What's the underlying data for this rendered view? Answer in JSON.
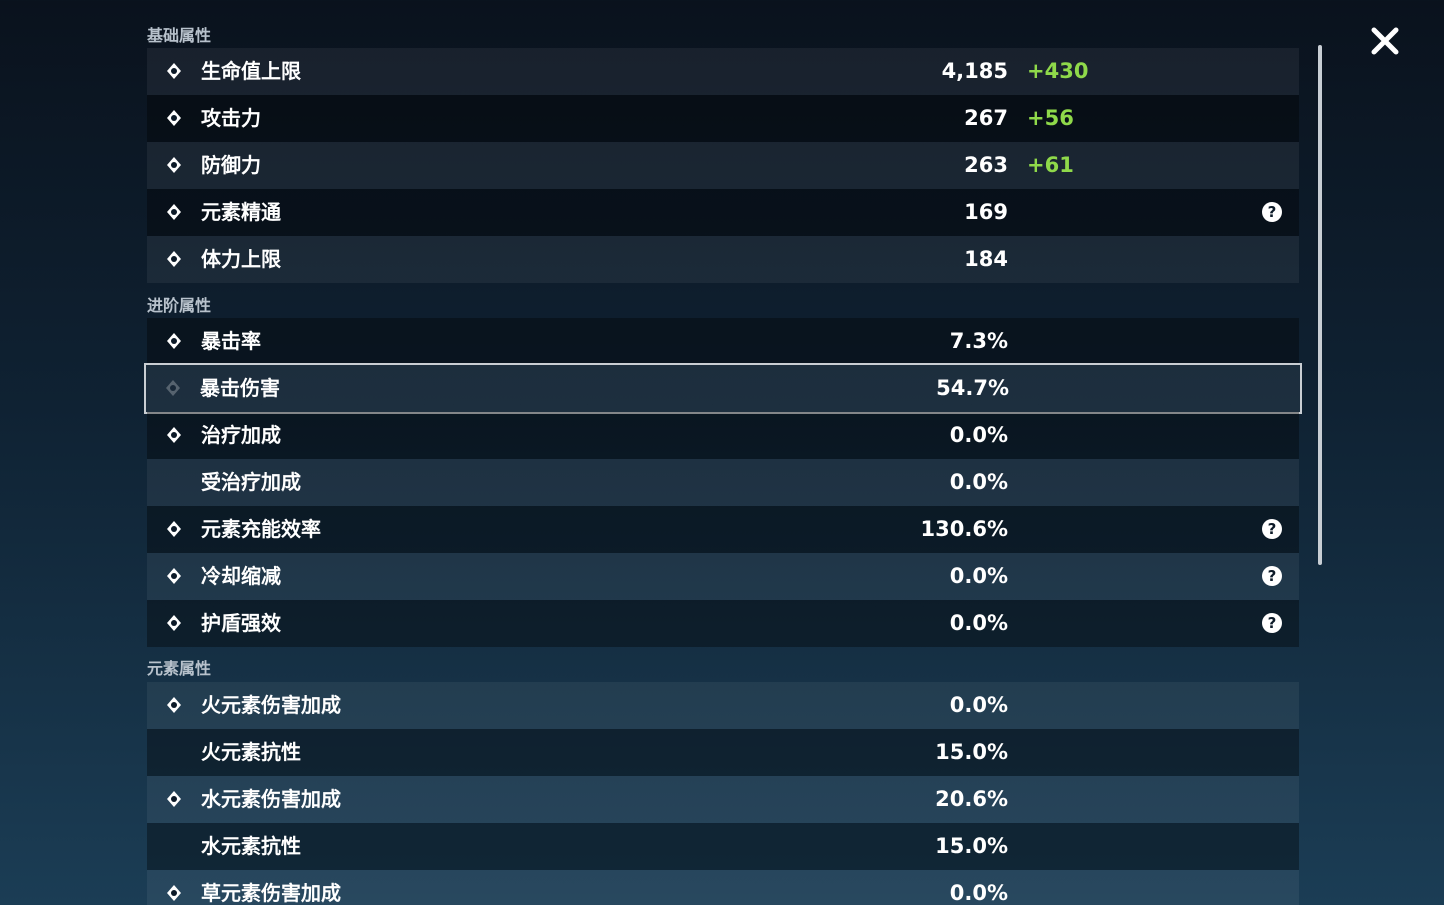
{
  "sections": [
    {
      "title": "基础属性",
      "rows": [
        {
          "label": "生命值上限",
          "value": "4,185",
          "bonus": "+430"
        },
        {
          "label": "攻击力",
          "value": "267",
          "bonus": "+56"
        },
        {
          "label": "防御力",
          "value": "263",
          "bonus": "+61"
        },
        {
          "label": "元素精通",
          "value": "169",
          "help": true
        },
        {
          "label": "体力上限",
          "value": "184"
        }
      ]
    },
    {
      "title": "进阶属性",
      "rows": [
        {
          "label": "暴击率",
          "value": "7.3%"
        },
        {
          "label": "暴击伤害",
          "value": "54.7%",
          "selected": true
        },
        {
          "label": "治疗加成",
          "value": "0.0%"
        },
        {
          "label": "受治疗加成",
          "value": "0.0%"
        },
        {
          "label": "元素充能效率",
          "value": "130.6%",
          "help": true
        },
        {
          "label": "冷却缩减",
          "value": "0.0%",
          "help": true
        },
        {
          "label": "护盾强效",
          "value": "0.0%",
          "help": true
        }
      ]
    },
    {
      "title": "元素属性",
      "rows": [
        {
          "label": "火元素伤害加成",
          "value": "0.0%"
        },
        {
          "label": "火元素抗性",
          "value": "15.0%"
        },
        {
          "label": "水元素伤害加成",
          "value": "20.6%"
        },
        {
          "label": "水元素抗性",
          "value": "15.0%"
        },
        {
          "label": "草元素伤害加成",
          "value": "0.0%"
        }
      ]
    }
  ]
}
